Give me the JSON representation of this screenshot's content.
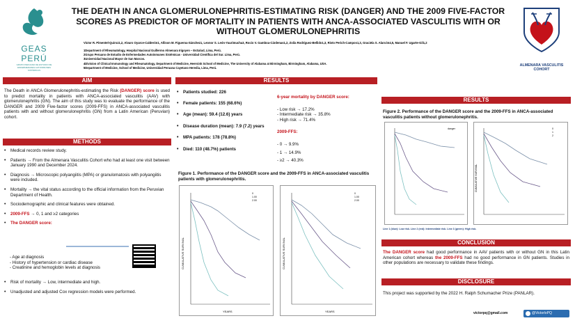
{
  "title": "THE DEATH IN ANCA GLOMERULONEPHRITIS-ESTIMATING RISK (DANGER) AND THE 2009 FIVE-FACTOR SCORES AS PREDICTOR OF MORTALITY IN PATIENTS WITH ANCA-ASSOCIATED VASCULITIS WITH OR WITHOUT GLOMERULONEPHRITIS",
  "authors": "Victor R. Pimentel-Quiroz1,2, Alvaro Oyarce-Calderón1, Allison M. Figueroa-Sánchez1, Leonor S. León-Yaurimucha3, Rocío V. Gamboa-Cárdenas1,2, Zoila Rodríguez-Bellido1,3, Risto Perich-Campos1,3, Graciela S. Alarcón4,5, Manuel F. Ugarte-Gil1,2",
  "affiliations": [
    "1Department of Rheumatology, Hospital Nacional Guillermo Almenara Irigoyen – EsSalud, Lima, Perú.",
    "2Grupo Peruano de Estudio de Enfermedades Autoinmunes Sistémicas - Universidad Científica del Sur. Lima, Perú.",
    "3Universidad Nacional Mayor de San Marcos.",
    "4Division of Clinical Immunology and Rheumatology, Department of Medicine, Heersink School of Medicine, The University of Alabama at Birmingham, Birmingham, Alabama, USA.",
    "5Department of Medicine, School of Medicine, Universidad Peruana Cayetano Heredia, Lima, Perú."
  ],
  "logo_left": {
    "name": "GEAS PERÚ",
    "sub": "GRUPO PERUANO DE ESTUDIO DE ENFERMEDADES AUTOINMUNES SISTÉMICAS"
  },
  "logo_right": {
    "name": "ALMENARA VASCULITIS COHORT"
  },
  "aim": {
    "header": "AIM",
    "pre": "The Death in ANCA Glomerulonephritis-estimating the Risk ",
    "danger": "(DANGER) score",
    "post": " is used to predict mortality in patients with ANCA-associated vasculitis (AAV) with glomerulonephritis (GN). The aim of this study was to evaluate the performance of the DANGER and 2009 Five-factor scores (2009-FFS) in ANCA-associated vasculitis patients with and without glomerulonephritis (GN) from a Latin American (Peruvian) cohort."
  },
  "methods": {
    "header": "METHODS",
    "items": [
      "Medical records review study.",
      "Patients → From the Almenara Vasculitis Cohort who had at least one visit between January 1990 and December 2024.",
      "Diagnosis → Microscopic polyangiitis (MPA) or granulomatosis with polyangiitis were included.",
      "Mortality → the vital status according to the official information from the Peruvian Department of Health.",
      "Sociodemographic and clinical features were obtained."
    ],
    "ffs": "2009-FFS",
    "ffs_rest": " → 0, 1 and ≥2 categories",
    "danger_label": "The DANGER score:",
    "danger_items": [
      "- Age at diagnosis",
      "- History of hypertension or cardiac disease",
      "- Creatinine and hemoglobin levels at diagnosis"
    ],
    "items2": [
      "Risk of mortality → Low, intermediate and high.",
      "Unadjusted and adjusted Cox regression models were performed."
    ]
  },
  "results": {
    "header": "RESULTS",
    "left": [
      "Patients studied: 226",
      "Female patients: 155 (68.6%)",
      "Age (mean): 59.4 (12.6) years",
      "Disease duration (mean): 7.9 (7.2) years",
      "MPA patients: 178 (78.8%)",
      "Died: 110 (48.7%) patients"
    ],
    "right_title": "6-year mortality by DANGER score:",
    "right_items": [
      "- Low risk → 17.2%",
      "- Intermediate risk → 35.8%",
      "- High risk → 71.4%"
    ],
    "ffs_title": "2009-FFS:",
    "ffs_items": [
      "- 0 → 9.9%",
      "- 1 → 14.9%",
      "- ≥2 → 40.3%"
    ]
  },
  "fig1": {
    "caption": "Figure 1. Performance of the DANGER score and the 2009-FFS in ANCA-associated vasculitis patients with glomerulonephritis.",
    "xlabel": "YEARS",
    "ylabel": "CUMULATIVE SURVIVAL",
    "legend_a": [
      "0",
      "1.00",
      "2.00"
    ],
    "legend_b": [
      "0",
      "1.00",
      "2.00"
    ]
  },
  "fig2": {
    "caption": "Figure 2. Performance of the DANGER score and the 2009-FFS in ANCA-associated vasculitis patients without glomerulonephritis.",
    "legend_label": "danger",
    "legend_b": [
      "0",
      "1",
      "2"
    ],
    "footnote": "Line 1 (blue): Low risk. Line 2 (red): Intermediate risk. Line 3 (green): High risk."
  },
  "results2_header": "RESULTS",
  "conclusion": {
    "header": "CONCLUSION",
    "pre": "The DANGER score",
    "mid": " had good performance in AAV patients with or without GN in this Latin American cohort whereas ",
    "ffs": "the 2009-FFS",
    "post": " had no good performance in GN patients. Studies in other populations are necessary to validate these findings."
  },
  "disclosure": {
    "header": "DISCLOSURE",
    "text": "This project was supported by the 2022 H. Ralph Schumacher Prize (PANLAR)."
  },
  "contact": {
    "email": "victorpq@gmail.com",
    "handle": "@VictorloPQ"
  },
  "colors": {
    "accent": "#b81f24",
    "teal": "#2a8f8f"
  }
}
